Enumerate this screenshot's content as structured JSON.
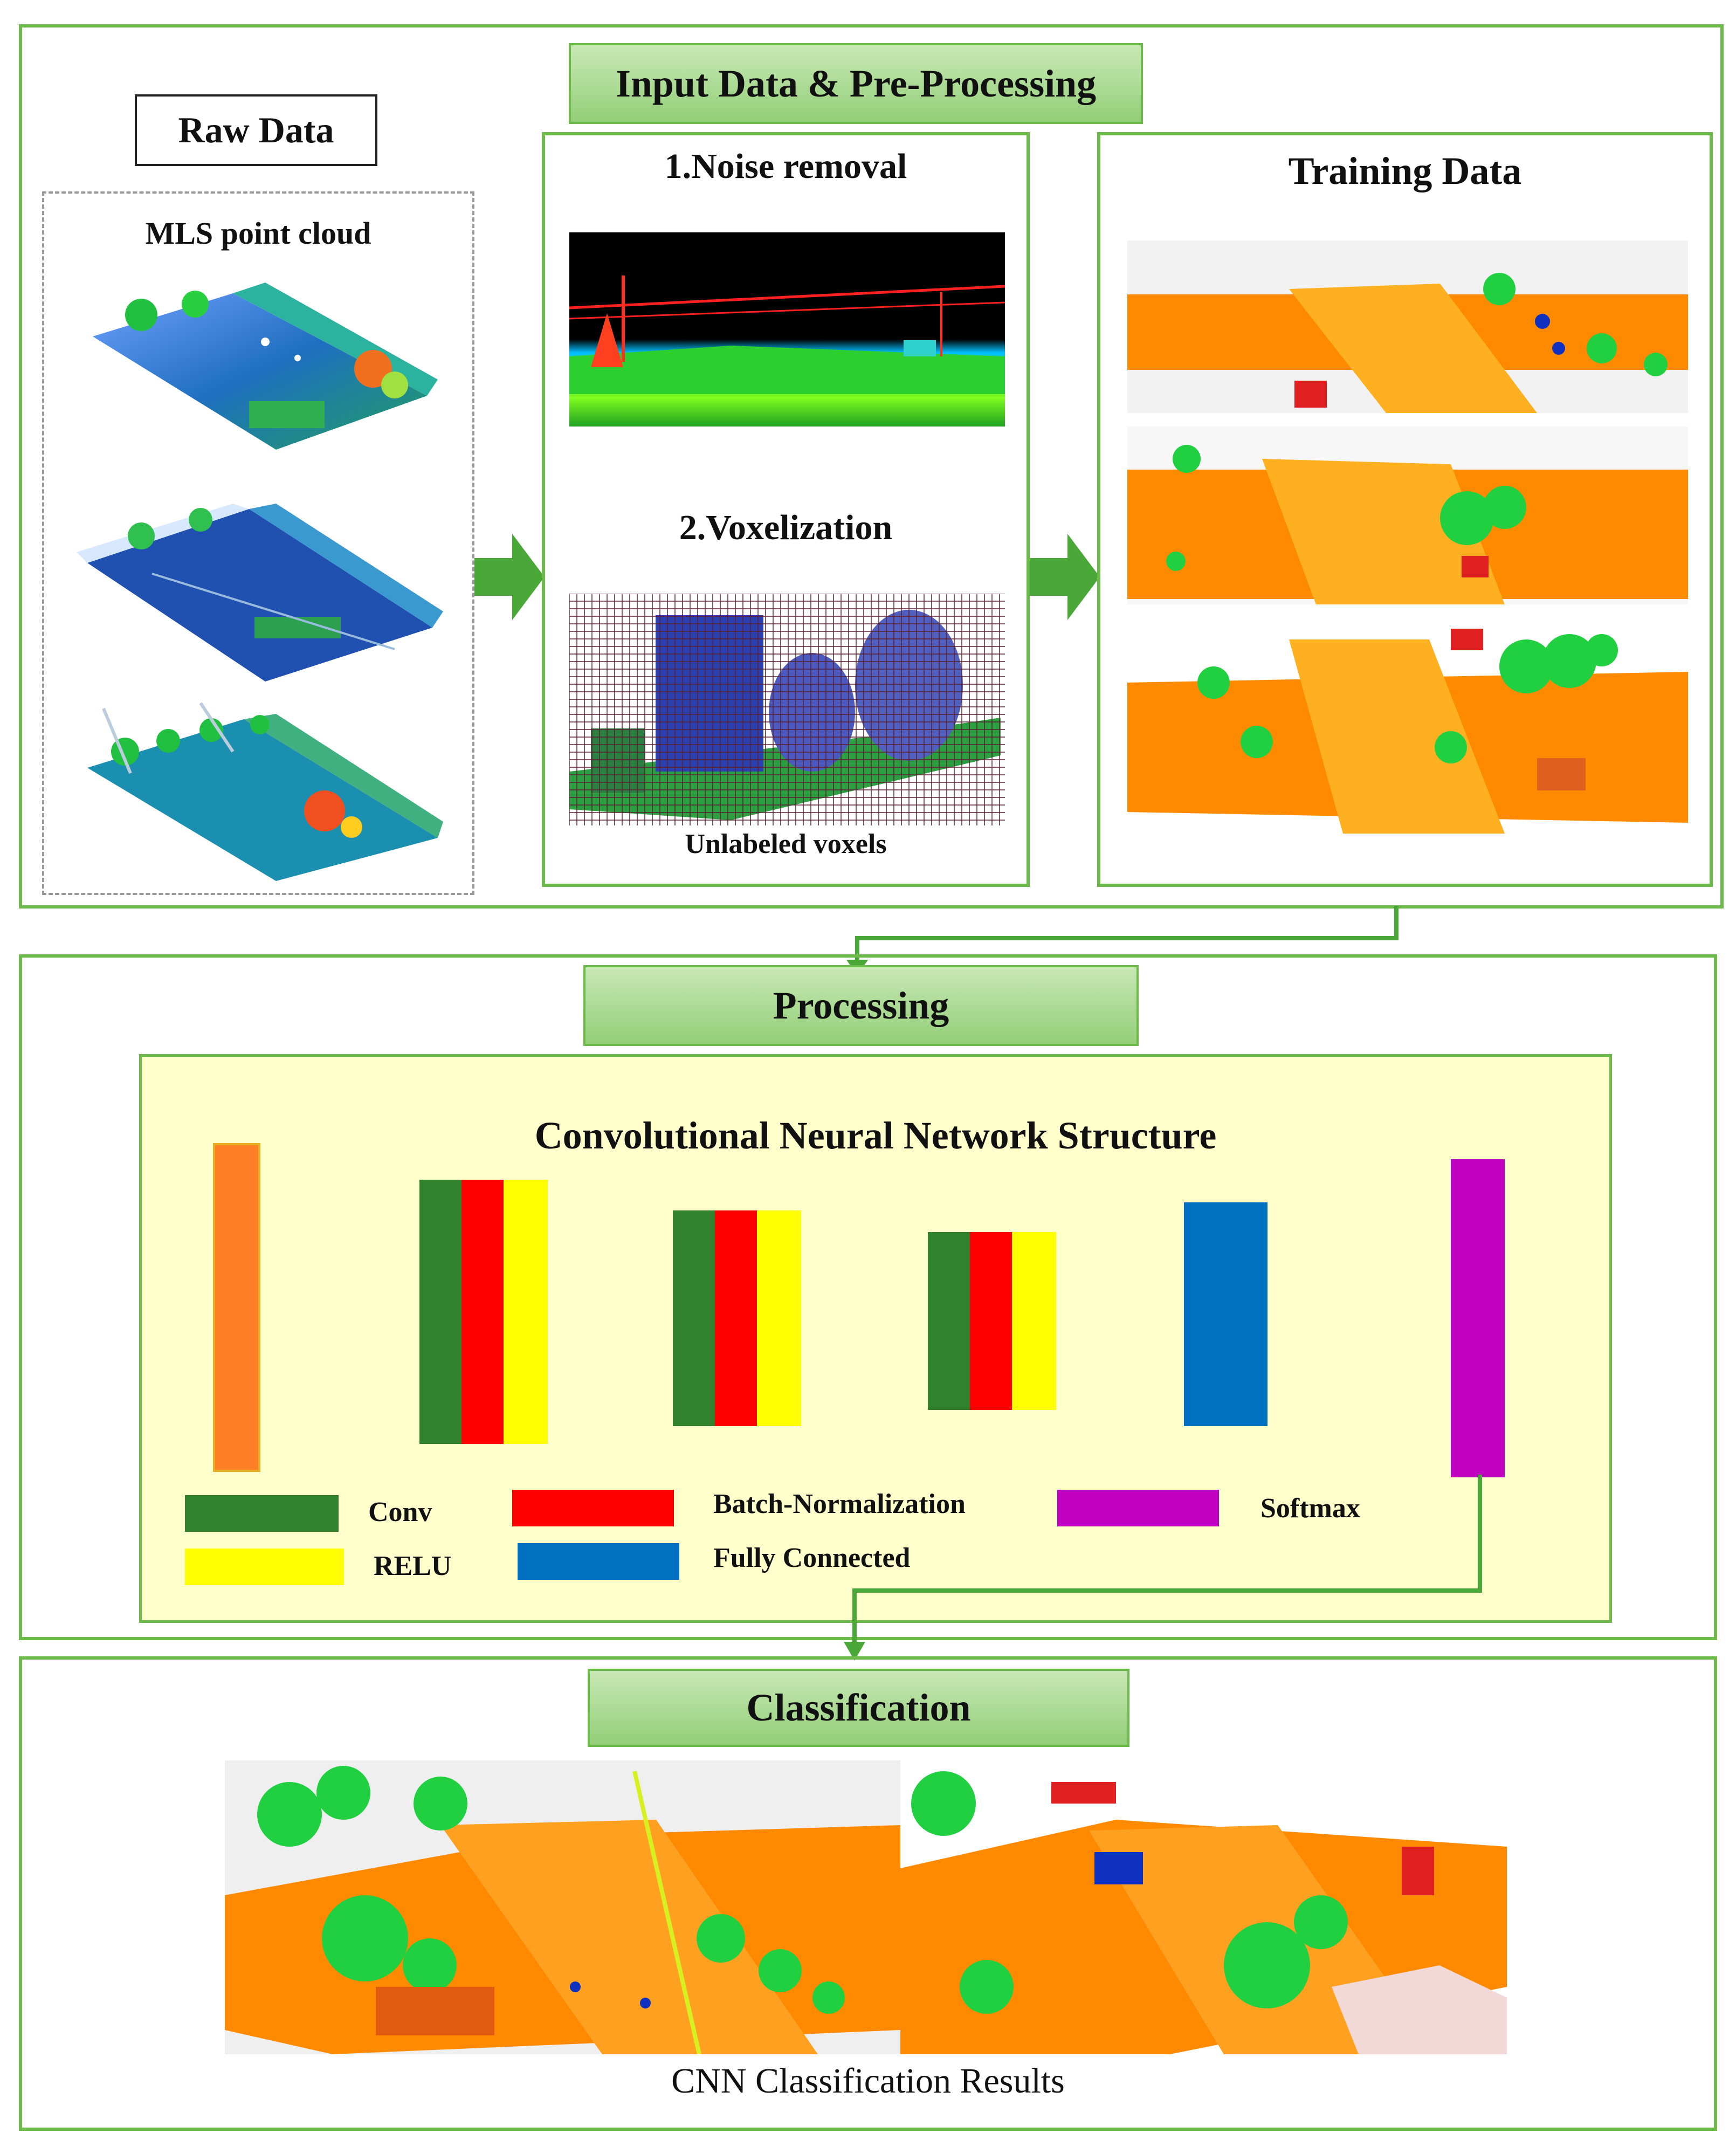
{
  "sections": {
    "input": {
      "title": "Input Data & Pre-Processing"
    },
    "processing": {
      "title": "Processing"
    },
    "classification": {
      "title": "Classification"
    }
  },
  "raw_data": {
    "label": "Raw Data",
    "subtitle": "MLS point cloud"
  },
  "preprocess": {
    "step1": "1.Noise removal",
    "step2": "2.Voxelization",
    "caption": "Unlabeled voxels"
  },
  "training": {
    "title": "Training Data"
  },
  "cnn": {
    "title": "Convolutional Neural Network Structure",
    "legend": {
      "conv": "Conv",
      "relu": "RELU",
      "batch_norm": "Batch-Normalization",
      "fully_connected": "Fully Connected",
      "softmax": "Softmax"
    },
    "colors": {
      "input": "#ff7f27",
      "conv": "#31812d",
      "batch_norm": "#ff0000",
      "relu": "#ffff00",
      "fully_connected": "#0070c0",
      "softmax": "#c000c0",
      "panel": "#ffffcc"
    }
  },
  "results": {
    "caption": "CNN Classification Results"
  },
  "colors": {
    "frame": "#6cbb4a",
    "arrow": "#4aa838"
  }
}
